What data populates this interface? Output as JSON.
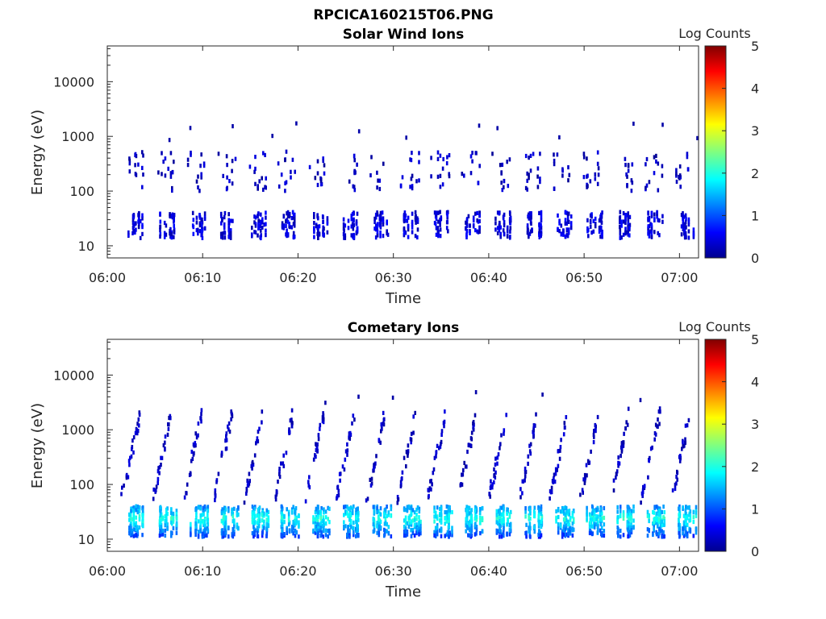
{
  "figure_title": "RPCICA160215T06.PNG",
  "chart_data": [
    {
      "type": "heatmap",
      "title": "Solar Wind Ions",
      "xlabel": "Time",
      "ylabel": "Energy (eV)",
      "y_scale": "log",
      "ylim": [
        6,
        45000
      ],
      "xlim": [
        "06:00",
        "07:02"
      ],
      "x_ticks": [
        "06:00",
        "06:10",
        "06:20",
        "06:30",
        "06:40",
        "06:50",
        "07:00"
      ],
      "y_ticks": [
        "10",
        "100",
        "1000",
        "10000"
      ],
      "colorbar": {
        "label": "Log Counts",
        "range": [
          0,
          5
        ],
        "ticks": [
          "0",
          "1",
          "2",
          "3",
          "4",
          "5"
        ],
        "colormap": "jet"
      },
      "sweep_period_min": 3.2,
      "sweep_start_times": [
        "06:02",
        "06:05.3",
        "06:08.5",
        "06:11.7",
        "06:14.9",
        "06:18.1",
        "06:21.3",
        "06:24.5",
        "06:27.7",
        "06:30.9",
        "06:34.1",
        "06:37.3",
        "06:40.5",
        "06:43.7",
        "06:46.9",
        "06:50.1",
        "06:53.3",
        "06:56.5",
        "06:59.7"
      ],
      "bands": [
        {
          "energy_eV": [
            15,
            45
          ],
          "log_counts": [
            0.1,
            0.6
          ],
          "description": "proton band"
        },
        {
          "energy_eV": [
            110,
            600
          ],
          "log_counts": [
            0.1,
            0.5
          ],
          "description": "alpha band"
        }
      ],
      "sporadic_max_energy_eV": 6000
    },
    {
      "type": "heatmap",
      "title": "Cometary Ions",
      "xlabel": "Time",
      "ylabel": "Energy (eV)",
      "y_scale": "log",
      "ylim": [
        6,
        45000
      ],
      "xlim": [
        "06:00",
        "07:02"
      ],
      "x_ticks": [
        "06:00",
        "06:10",
        "06:20",
        "06:30",
        "06:40",
        "06:50",
        "07:00"
      ],
      "y_ticks": [
        "10",
        "100",
        "1000",
        "10000"
      ],
      "colorbar": {
        "label": "Log Counts",
        "range": [
          0,
          5
        ],
        "ticks": [
          "0",
          "1",
          "2",
          "3",
          "4",
          "5"
        ],
        "colormap": "jet"
      },
      "sweep_period_min": 3.2,
      "bands": [
        {
          "energy_eV": [
            12,
            45
          ],
          "log_counts": [
            0.2,
            2.0
          ],
          "description": "low-energy cometary ion band, brightest near 20-30 eV"
        },
        {
          "energy_eV": [
            50,
            2500
          ],
          "log_counts": [
            0.1,
            0.4
          ],
          "description": "rising streaks after each sweep"
        }
      ],
      "sporadic_max_energy_eV": 7000
    }
  ]
}
